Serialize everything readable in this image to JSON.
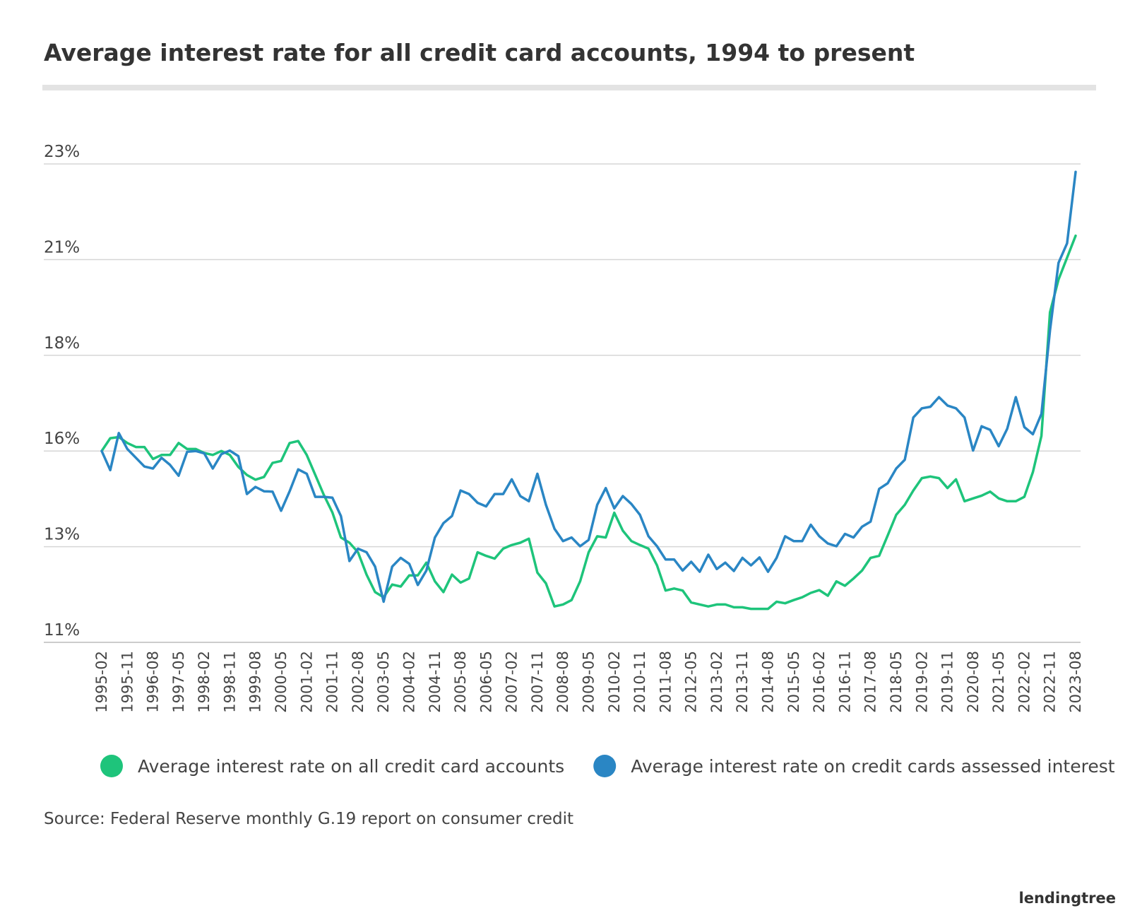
{
  "chart_data": {
    "type": "line",
    "title": "Average interest rate for all credit card accounts, 1994 to present",
    "source": "Source: Federal Reserve monthly G.19 report on consumer credit",
    "logo": "lendingtree",
    "categories": [
      "1995-02",
      null,
      null,
      "1995-11",
      null,
      null,
      "1996-08",
      null,
      null,
      "1997-05",
      null,
      null,
      "1998-02",
      null,
      null,
      "1998-11",
      null,
      null,
      "1999-08",
      null,
      null,
      "2000-05",
      null,
      null,
      "2001-02",
      null,
      null,
      "2001-11",
      null,
      null,
      "2002-08",
      null,
      null,
      "2003-05",
      null,
      null,
      "2004-02",
      null,
      null,
      "2004-11",
      null,
      null,
      "2005-08",
      null,
      null,
      "2006-05",
      null,
      null,
      "2007-02",
      null,
      null,
      "2007-11",
      null,
      null,
      "2008-08",
      null,
      null,
      "2009-05",
      null,
      null,
      "2010-02",
      null,
      null,
      "2010-11",
      null,
      null,
      "2011-08",
      null,
      null,
      "2012-05",
      null,
      null,
      "2013-02",
      null,
      null,
      "2013-11",
      null,
      null,
      "2014-08",
      null,
      null,
      "2015-05",
      null,
      null,
      "2016-02",
      null,
      null,
      "2016-11",
      null,
      null,
      "2017-08",
      null,
      null,
      "2018-05",
      null,
      null,
      "2019-02",
      null,
      null,
      "2019-11",
      null,
      null,
      "2020-08",
      null,
      null,
      "2021-05",
      null,
      null,
      "2022-02",
      null,
      null,
      "2022-11",
      null,
      null,
      "2023-08"
    ],
    "series": [
      {
        "name": "Average interest rate on all credit card accounts",
        "color": "#1ec47b",
        "values": [
          15.8,
          16.12,
          16.15,
          16.0,
          15.9,
          15.9,
          15.6,
          15.7,
          15.7,
          16.0,
          15.85,
          15.85,
          15.75,
          15.7,
          15.8,
          15.7,
          15.4,
          15.2,
          15.08,
          15.15,
          15.5,
          15.55,
          16.0,
          16.05,
          15.7,
          15.2,
          14.7,
          14.26,
          13.63,
          13.5,
          13.26,
          12.7,
          12.26,
          12.13,
          12.45,
          12.4,
          12.68,
          12.68,
          13.0,
          12.53,
          12.26,
          12.7,
          12.5,
          12.6,
          13.26,
          13.17,
          13.1,
          13.35,
          13.44,
          13.5,
          13.6,
          12.75,
          12.48,
          11.9,
          11.95,
          12.06,
          12.53,
          13.26,
          13.66,
          13.63,
          14.25,
          13.8,
          13.54,
          13.44,
          13.35,
          12.93,
          12.3,
          12.35,
          12.3,
          12.0,
          11.95,
          11.9,
          11.95,
          11.95,
          11.88,
          11.88,
          11.84,
          11.84,
          11.84,
          12.02,
          11.98,
          12.06,
          12.13,
          12.24,
          12.31,
          12.17,
          12.53,
          12.42,
          12.6,
          12.8,
          13.12,
          13.17,
          13.68,
          14.2,
          14.45,
          14.81,
          15.12,
          15.16,
          15.12,
          14.87,
          15.09,
          14.54,
          14.61,
          14.68,
          14.78,
          14.61,
          14.54,
          14.54,
          14.65,
          15.27,
          16.18,
          19.28,
          20.1,
          20.65,
          21.2
        ]
      },
      {
        "name": "Average interest rate on credit cards assessed interest",
        "color": "#2a86c4",
        "values": [
          15.8,
          15.32,
          16.25,
          15.85,
          15.63,
          15.41,
          15.36,
          15.63,
          15.45,
          15.18,
          15.78,
          15.8,
          15.74,
          15.36,
          15.72,
          15.81,
          15.67,
          14.72,
          14.9,
          14.79,
          14.78,
          14.3,
          14.79,
          15.34,
          15.23,
          14.65,
          14.65,
          14.63,
          14.17,
          13.04,
          13.35,
          13.26,
          12.9,
          12.02,
          12.9,
          13.12,
          12.97,
          12.44,
          12.8,
          13.63,
          13.99,
          14.17,
          14.81,
          14.72,
          14.5,
          14.41,
          14.72,
          14.72,
          15.09,
          14.67,
          14.54,
          15.23,
          14.45,
          13.85,
          13.54,
          13.63,
          13.41,
          13.57,
          14.45,
          14.87,
          14.36,
          14.67,
          14.47,
          14.2,
          13.66,
          13.41,
          13.08,
          13.08,
          12.8,
          13.02,
          12.77,
          13.2,
          12.84,
          13.0,
          12.79,
          13.12,
          12.93,
          13.13,
          12.77,
          13.12,
          13.66,
          13.54,
          13.54,
          13.95,
          13.66,
          13.48,
          13.41,
          13.72,
          13.63,
          13.9,
          14.03,
          14.85,
          14.99,
          15.36,
          15.58,
          16.64,
          16.87,
          16.91,
          17.15,
          16.94,
          16.87,
          16.64,
          15.81,
          16.42,
          16.33,
          15.92,
          16.36,
          17.15,
          16.4,
          16.22,
          16.73,
          18.82,
          20.52,
          21.01,
          22.8
        ]
      }
    ],
    "ylim": [
      11,
      23
    ],
    "yticks": [
      {
        "value": 11,
        "label": "11%"
      },
      {
        "value": 13.4,
        "label": "13%"
      },
      {
        "value": 15.8,
        "label": "16%"
      },
      {
        "value": 18.2,
        "label": "18%"
      },
      {
        "value": 20.6,
        "label": "21%"
      },
      {
        "value": 23,
        "label": "23%"
      }
    ],
    "grid": true,
    "legend": "bottom"
  }
}
